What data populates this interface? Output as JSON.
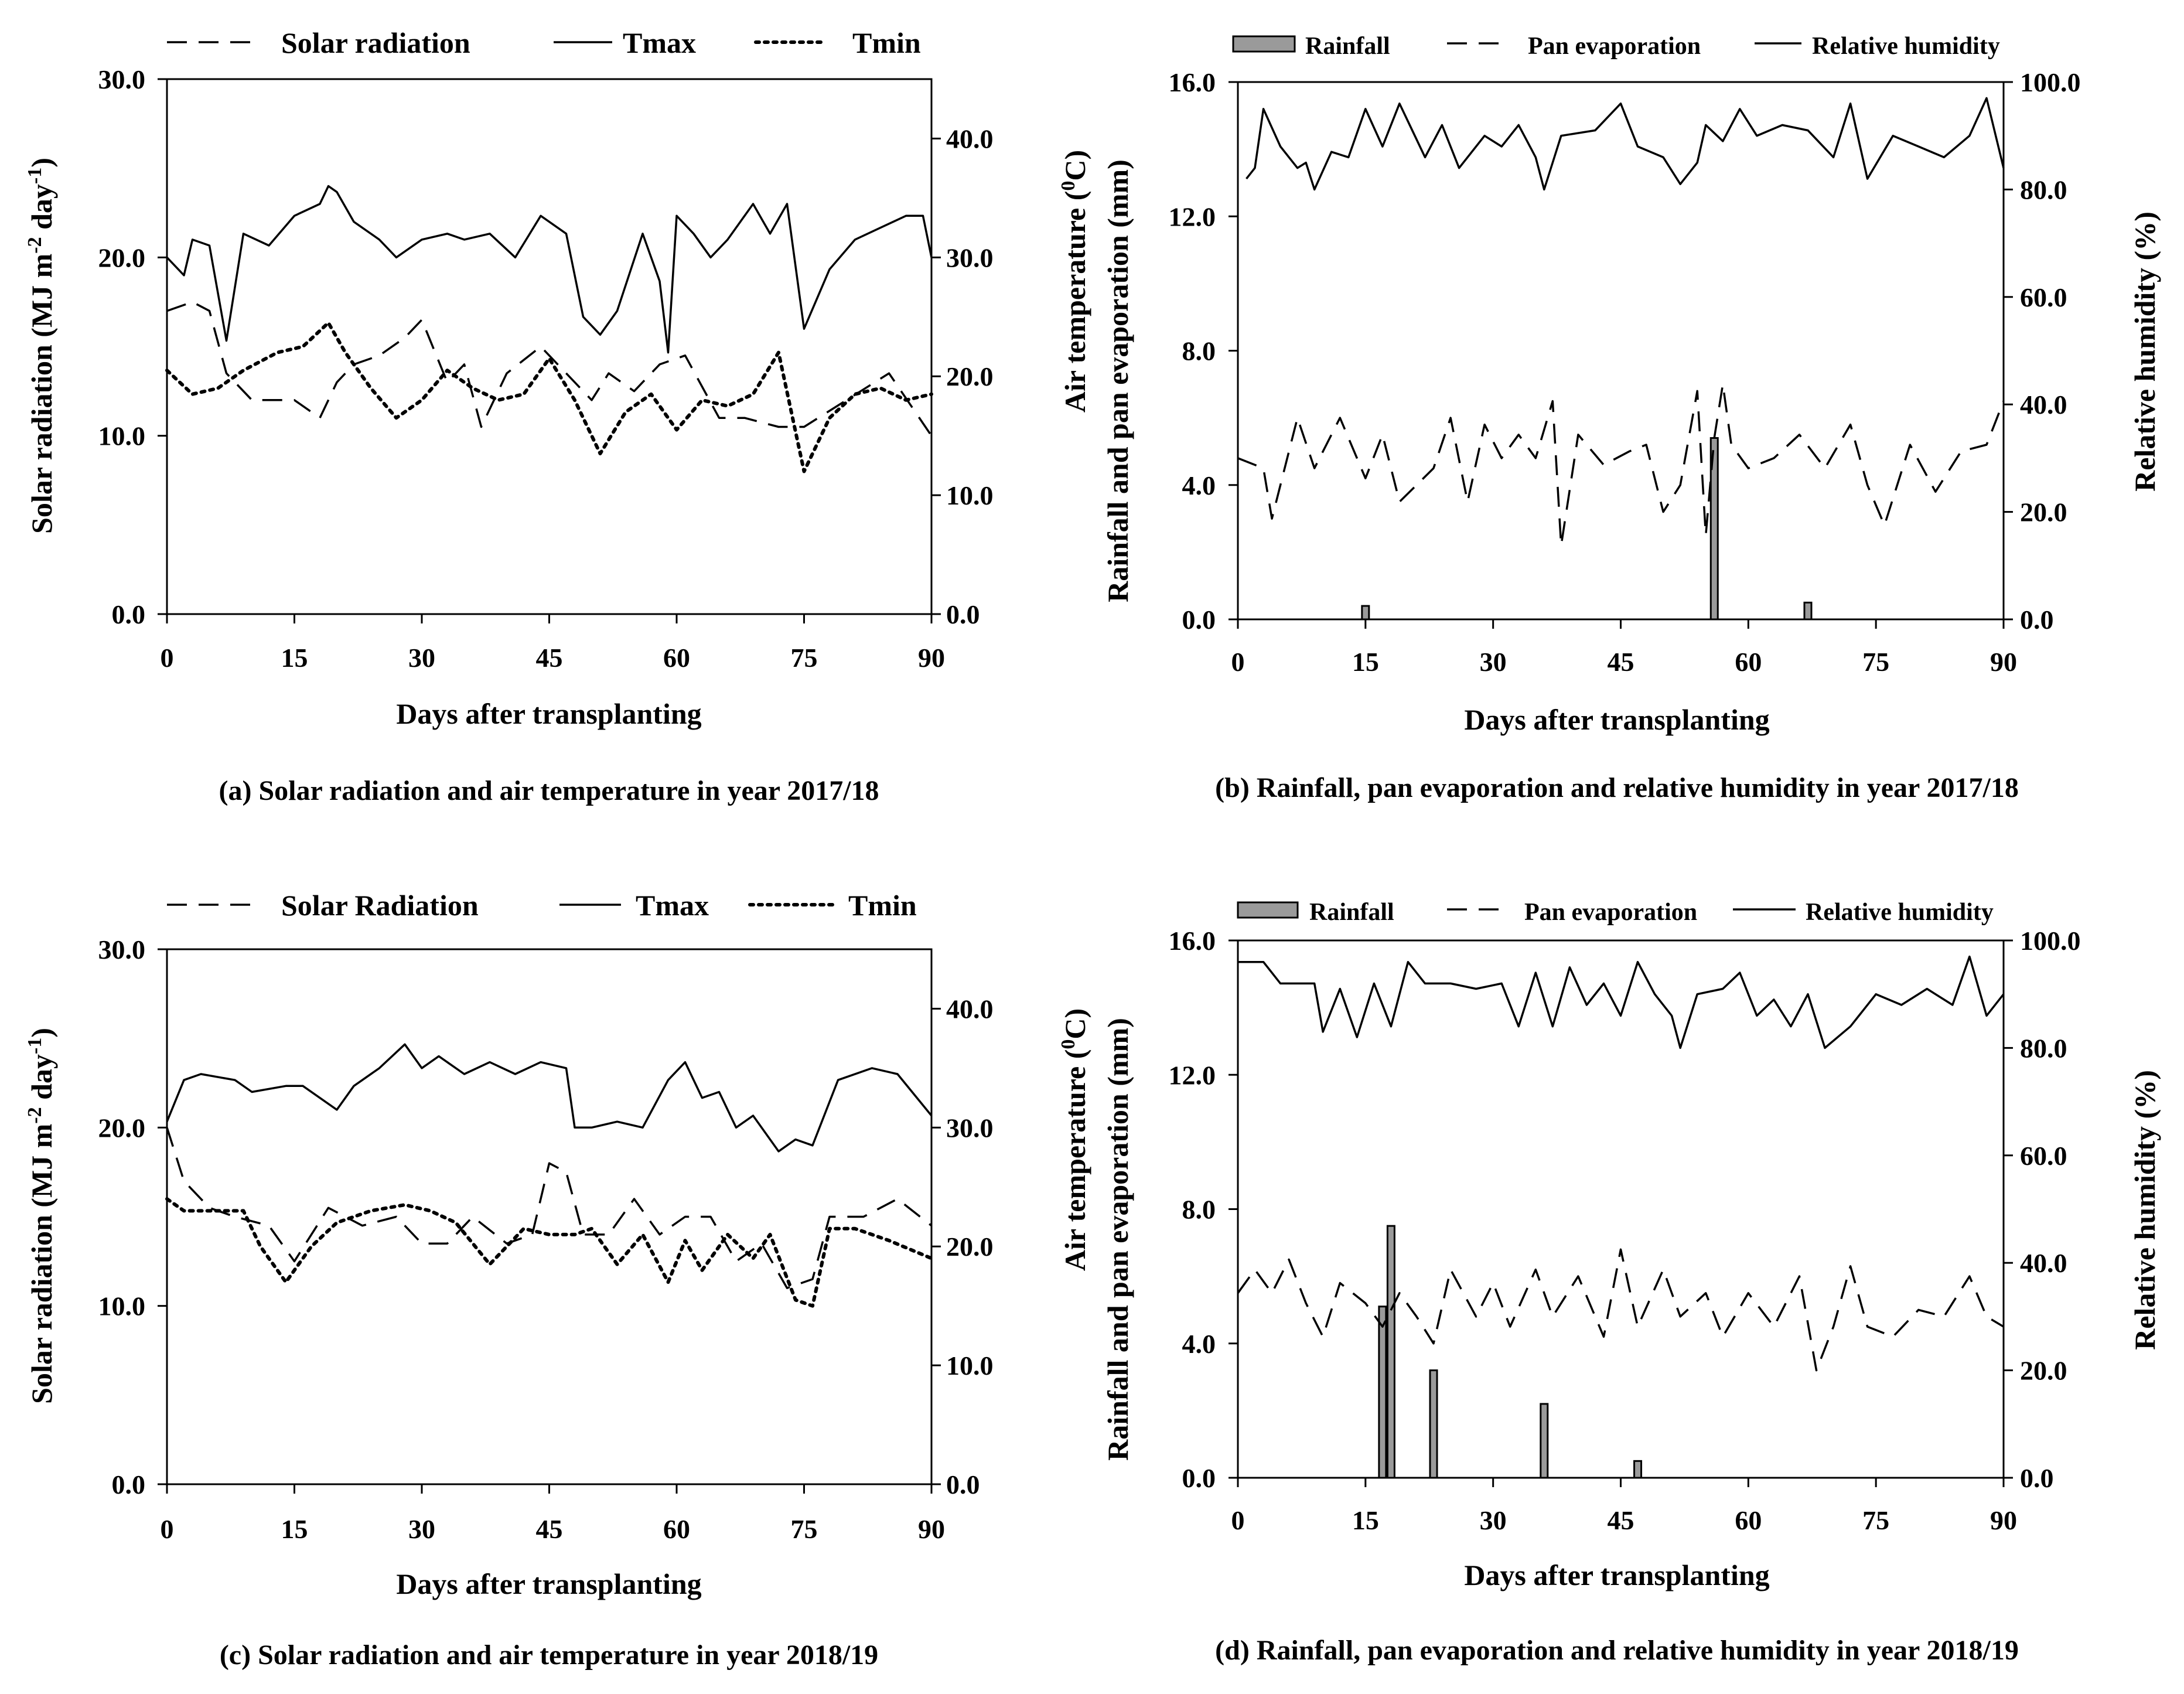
{
  "figure": {
    "panels_count": 4
  },
  "chart_data": [
    {
      "id": "a",
      "type": "line",
      "caption": "(a) Solar radiation and air temperature in year 2017/18",
      "xlabel": "Days after transplanting",
      "ylabel_left": "Solar radiation (MJ m-2 day-1)",
      "ylabel_left_parts": {
        "pre": "Solar radiation (MJ m",
        "sup1": "-2",
        "mid": " day",
        "sup2": "-1",
        "post": ")"
      },
      "xlim": [
        0,
        90
      ],
      "x_ticks": [
        "0",
        "15",
        "30",
        "45",
        "60",
        "75",
        "90"
      ],
      "ylim_left": [
        0,
        30
      ],
      "y_left_ticks": [
        "0.0",
        "10.0",
        "20.0",
        "30.0"
      ],
      "ylim_right": [
        0,
        45
      ],
      "y_right_ticks": [
        "0.0",
        "10.0",
        "20.0",
        "30.0",
        "40.0"
      ],
      "legend": [
        "Solar radiation",
        "Tmax",
        "Tmin"
      ],
      "series": [
        {
          "name": "Solar radiation",
          "axis": "left",
          "style": "dashed",
          "x": [
            0,
            3,
            5,
            7,
            10,
            15,
            18,
            20,
            22,
            25,
            28,
            30,
            33,
            35,
            37,
            40,
            44,
            47,
            50,
            52,
            55,
            58,
            61,
            65,
            68,
            72,
            75,
            80,
            85,
            90
          ],
          "y": [
            17,
            17.5,
            17,
            13.5,
            12,
            12,
            11,
            13,
            14,
            14.5,
            15.5,
            16.5,
            13,
            14,
            10.5,
            13.5,
            15,
            13.5,
            12,
            13.5,
            12.5,
            14,
            14.5,
            11,
            11,
            10.5,
            10.5,
            12,
            13.5,
            10
          ]
        },
        {
          "name": "Tmax",
          "axis": "right",
          "style": "solid",
          "x": [
            0,
            2,
            3,
            5,
            7,
            9,
            12,
            15,
            18,
            19,
            20,
            22,
            25,
            27,
            30,
            33,
            35,
            38,
            41,
            44,
            47,
            49,
            51,
            53,
            56,
            58,
            59,
            60,
            62,
            64,
            66,
            69,
            71,
            73,
            75,
            78,
            81,
            84,
            87,
            89,
            90
          ],
          "y": [
            30,
            28.5,
            31.5,
            31,
            23,
            32,
            31,
            33.5,
            34.5,
            36,
            35.5,
            33,
            31.5,
            30,
            31.5,
            32,
            31.5,
            32,
            30,
            33.5,
            32,
            25,
            23.5,
            25.5,
            32,
            28,
            22,
            33.5,
            32,
            30,
            31.5,
            34.5,
            32,
            34.5,
            24,
            29,
            31.5,
            32.5,
            33.5,
            33.5,
            30
          ]
        },
        {
          "name": "Tmin",
          "axis": "right",
          "style": "dotted",
          "x": [
            0,
            3,
            6,
            9,
            13,
            16,
            19,
            21,
            24,
            27,
            30,
            33,
            36,
            39,
            42,
            45,
            48,
            51,
            54,
            57,
            60,
            63,
            66,
            69,
            72,
            75,
            78,
            81,
            84,
            87,
            90
          ],
          "y": [
            20.5,
            18.5,
            19,
            20.5,
            22,
            22.5,
            24.5,
            22,
            19,
            16.5,
            18,
            20.5,
            19,
            18,
            18.5,
            21.5,
            18,
            13.5,
            17,
            18.5,
            15.5,
            18,
            17.5,
            18.5,
            22,
            12,
            16.5,
            18.5,
            19,
            18,
            18.5
          ]
        }
      ]
    },
    {
      "id": "b",
      "type": "bar+line",
      "caption": "(b) Rainfall, pan evaporation and relative humidity in year 2017/18",
      "xlabel": "Days after transplanting",
      "ylabel_left_line1": "Air temperature (0C)",
      "ylabel_left_line1_parts": {
        "pre": "Air temperature (",
        "sup": "0",
        "post": "C)"
      },
      "ylabel_left_line2": "Rainfall and pan evaporation (mm)",
      "ylabel_right": "Relative humidity (%)",
      "xlim": [
        0,
        90
      ],
      "x_ticks": [
        "0",
        "15",
        "30",
        "45",
        "60",
        "75",
        "90"
      ],
      "ylim_left": [
        0,
        16
      ],
      "y_left_ticks": [
        "0.0",
        "4.0",
        "8.0",
        "12.0",
        "16.0"
      ],
      "ylim_right": [
        0,
        100
      ],
      "y_right_ticks": [
        "0.0",
        "20.0",
        "40.0",
        "60.0",
        "80.0",
        "100.0"
      ],
      "legend": [
        "Rainfall",
        "Pan evaporation",
        "Relative humidity"
      ],
      "bars": {
        "name": "Rainfall",
        "axis": "left",
        "x": [
          15,
          56,
          67
        ],
        "values": [
          0.4,
          5.4,
          0.5
        ]
      },
      "series": [
        {
          "name": "Pan evaporation",
          "axis": "left",
          "style": "dashed",
          "x": [
            0,
            3,
            4,
            7,
            9,
            12,
            15,
            17,
            19,
            21,
            23,
            25,
            27,
            29,
            31,
            33,
            35,
            37,
            38,
            40,
            43,
            46,
            48,
            50,
            52,
            54,
            55,
            56,
            57,
            58,
            60,
            63,
            66,
            69,
            72,
            74,
            76,
            79,
            82,
            85,
            88,
            90
          ],
          "y": [
            4.8,
            4.5,
            3,
            6,
            4.5,
            6,
            4.2,
            5.5,
            3.5,
            4,
            4.5,
            6,
            3.5,
            5.8,
            4.8,
            5.5,
            4.8,
            6.5,
            2.2,
            5.5,
            4.6,
            5,
            5.2,
            3.2,
            4,
            6.8,
            2.5,
            5.4,
            7,
            5.2,
            4.5,
            4.8,
            5.5,
            4.5,
            5.8,
            4,
            2.8,
            5.2,
            3.8,
            5,
            5.2,
            6.5
          ]
        },
        {
          "name": "Relative humidity",
          "axis": "right",
          "style": "solid",
          "x": [
            1,
            2,
            3,
            5,
            7,
            8,
            9,
            11,
            13,
            15,
            17,
            19,
            22,
            24,
            26,
            29,
            31,
            33,
            35,
            36,
            38,
            42,
            45,
            47,
            50,
            52,
            54,
            55,
            57,
            59,
            61,
            64,
            67,
            70,
            72,
            74,
            77,
            80,
            83,
            86,
            88,
            90
          ],
          "y": [
            82,
            84,
            95,
            88,
            84,
            85,
            80,
            87,
            86,
            95,
            88,
            96,
            86,
            92,
            84,
            90,
            88,
            92,
            86,
            80,
            90,
            91,
            96,
            88,
            86,
            81,
            85,
            92,
            89,
            95,
            90,
            92,
            91,
            86,
            96,
            82,
            90,
            88,
            86,
            90,
            97,
            84
          ]
        }
      ]
    },
    {
      "id": "c",
      "type": "line",
      "caption": "(c) Solar radiation and air temperature in year 2018/19",
      "xlabel": "Days after transplanting",
      "ylabel_left": "Solar radiation (MJ m-2 day-1)",
      "ylabel_left_parts": {
        "pre": "Solar radiation (MJ m",
        "sup1": "-2",
        "mid": " day",
        "sup2": "-1",
        "post": ")"
      },
      "xlim": [
        0,
        90
      ],
      "x_ticks": [
        "0",
        "15",
        "30",
        "45",
        "60",
        "75",
        "90"
      ],
      "ylim_left": [
        0,
        30
      ],
      "y_left_ticks": [
        "0.0",
        "10.0",
        "20.0",
        "30.0"
      ],
      "ylim_right": [
        0,
        45
      ],
      "y_right_ticks": [
        "0.0",
        "10.0",
        "20.0",
        "30.0",
        "40.0"
      ],
      "legend": [
        "Solar Radiation",
        "Tmax",
        "Tmin"
      ],
      "series": [
        {
          "name": "Solar Radiation",
          "axis": "left",
          "style": "dashed",
          "x": [
            0,
            2,
            5,
            8,
            12,
            15,
            19,
            23,
            27,
            30,
            33,
            36,
            40,
            43,
            45,
            47,
            49,
            52,
            55,
            58,
            61,
            64,
            67,
            70,
            73,
            76,
            78,
            82,
            86,
            90
          ],
          "y": [
            20,
            17,
            15.5,
            15,
            14.5,
            12.5,
            15.5,
            14.5,
            15,
            13.5,
            13.5,
            15,
            13.5,
            14,
            18,
            17.5,
            14,
            14,
            16,
            14,
            15,
            15,
            12.5,
            13.5,
            11,
            11.5,
            15,
            15,
            16,
            14.5
          ]
        },
        {
          "name": "Tmax",
          "axis": "right",
          "style": "solid",
          "x": [
            0,
            2,
            4,
            8,
            10,
            14,
            16,
            20,
            22,
            25,
            28,
            30,
            32,
            35,
            38,
            41,
            44,
            47,
            48,
            50,
            53,
            56,
            59,
            61,
            63,
            65,
            67,
            69,
            72,
            74,
            76,
            79,
            83,
            86,
            90
          ],
          "y": [
            30.5,
            34,
            34.5,
            34,
            33,
            33.5,
            33.5,
            31.5,
            33.5,
            35,
            37,
            35,
            36,
            34.5,
            35.5,
            34.5,
            35.5,
            35,
            30,
            30,
            30.5,
            30,
            34,
            35.5,
            32.5,
            33,
            30,
            31,
            28,
            29,
            28.5,
            34,
            35,
            34.5,
            31
          ]
        },
        {
          "name": "Tmin",
          "axis": "right",
          "style": "dotted",
          "x": [
            0,
            2,
            5,
            9,
            11,
            14,
            17,
            20,
            24,
            28,
            31,
            34,
            38,
            42,
            45,
            48,
            50,
            53,
            56,
            59,
            61,
            63,
            66,
            69,
            71,
            74,
            76,
            78,
            81,
            85,
            90
          ],
          "y": [
            24,
            23,
            23,
            23,
            20,
            17,
            20,
            22,
            23,
            23.5,
            23,
            22,
            18.5,
            21.5,
            21,
            21,
            21.5,
            18.5,
            21,
            17,
            20.5,
            18,
            21,
            19,
            21,
            15.5,
            15,
            21.5,
            21.5,
            20.5,
            19
          ]
        }
      ]
    },
    {
      "id": "d",
      "type": "bar+line",
      "caption": "(d) Rainfall, pan evaporation and relative humidity in year 2018/19",
      "xlabel": "Days after transplanting",
      "ylabel_left_line1": "Air temperature (0C)",
      "ylabel_left_line1_parts": {
        "pre": "Air temperature (",
        "sup": "0",
        "post": "C)"
      },
      "ylabel_left_line2": "Rainfall and pan evaporation (mm)",
      "ylabel_right": "Relative humidity (%)",
      "xlim": [
        0,
        90
      ],
      "x_ticks": [
        "0",
        "15",
        "30",
        "45",
        "60",
        "75",
        "90"
      ],
      "ylim_left": [
        0,
        16
      ],
      "y_left_ticks": [
        "0.0",
        "4.0",
        "8.0",
        "12.0",
        "16.0"
      ],
      "ylim_right": [
        0,
        100
      ],
      "y_right_ticks": [
        "0.0",
        "20.0",
        "40.0",
        "60.0",
        "80.0",
        "100.0"
      ],
      "legend": [
        "Rainfall",
        "Pan evaporation",
        "Relative humidity"
      ],
      "bars": {
        "name": "Rainfall",
        "axis": "left",
        "x": [
          17,
          18,
          23,
          36,
          47
        ],
        "values": [
          5.1,
          7.5,
          3.2,
          2.2,
          0.5
        ]
      },
      "series": [
        {
          "name": "Pan evaporation",
          "axis": "left",
          "style": "dashed",
          "x": [
            0,
            2,
            4,
            6,
            8,
            10,
            12,
            15,
            17,
            19,
            21,
            23,
            25,
            28,
            30,
            32,
            35,
            37,
            40,
            43,
            45,
            47,
            50,
            52,
            55,
            57,
            60,
            63,
            66,
            68,
            70,
            72,
            74,
            77,
            80,
            83,
            86,
            88,
            90
          ],
          "y": [
            5.5,
            6.2,
            5.5,
            6.5,
            5.2,
            4.2,
            5.8,
            5.2,
            4.5,
            5.5,
            4.8,
            4,
            6.2,
            4.8,
            5.8,
            4.5,
            6.2,
            4.8,
            6,
            4.2,
            6.8,
            4.5,
            6.2,
            4.8,
            5.5,
            4.2,
            5.5,
            4.5,
            6,
            3.2,
            4.5,
            6.3,
            4.5,
            4.2,
            5,
            4.8,
            6,
            4.8,
            4.5
          ]
        },
        {
          "name": "Relative humidity",
          "axis": "right",
          "style": "solid",
          "x": [
            0,
            3,
            5,
            9,
            10,
            12,
            14,
            16,
            18,
            20,
            22,
            25,
            28,
            31,
            33,
            35,
            37,
            39,
            41,
            43,
            45,
            47,
            49,
            51,
            52,
            54,
            57,
            59,
            61,
            63,
            65,
            67,
            69,
            72,
            75,
            78,
            81,
            84,
            86,
            88,
            90
          ],
          "y": [
            96,
            96,
            92,
            92,
            83,
            91,
            82,
            92,
            84,
            96,
            92,
            92,
            91,
            92,
            84,
            94,
            84,
            95,
            88,
            92,
            86,
            96,
            90,
            86,
            80,
            90,
            91,
            94,
            86,
            89,
            84,
            90,
            80,
            84,
            90,
            88,
            91,
            88,
            97,
            86,
            90
          ]
        }
      ]
    }
  ]
}
